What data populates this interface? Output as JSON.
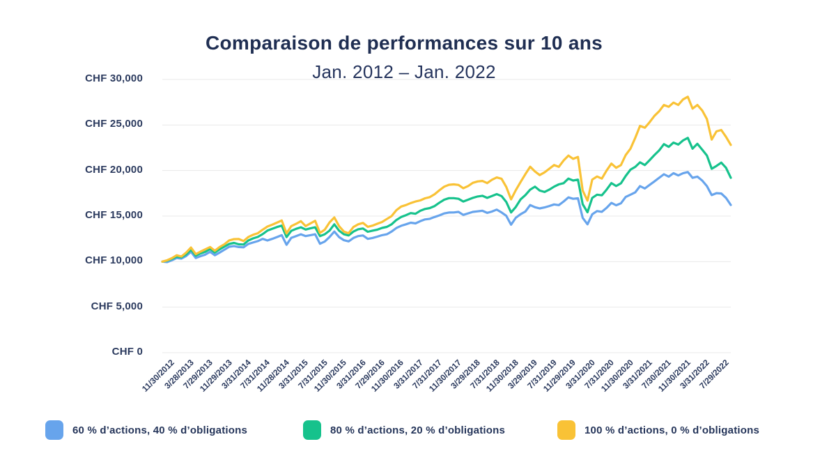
{
  "header": {
    "title": "Comparaison de performances sur 10 ans",
    "subtitle": "Jan. 2012 – Jan. 2022"
  },
  "colors": {
    "blue": "#67a4ec",
    "green": "#16c28c",
    "yellow": "#f9c236",
    "gridline": "#e8e8e8",
    "text_navy": "#2b3a5e",
    "title_navy": "#1f2e52"
  },
  "legend": {
    "items": [
      {
        "label": "60 % d’actions, 40 % d’obligations",
        "color": "#67a4ec"
      },
      {
        "label": "80 % d’actions, 20 % d’obligations",
        "color": "#16c28c"
      },
      {
        "label": "100 % d’actions, 0 % d’obligations",
        "color": "#f9c236"
      }
    ]
  },
  "chart_data": {
    "type": "line",
    "title": "Comparaison de performances sur 10 ans",
    "subtitle": "Jan. 2012 – Jan. 2022",
    "currency": "CHF",
    "grid": true,
    "legend_position": "bottom",
    "y_axis": {
      "min": 0,
      "max": 30000,
      "step": 5000,
      "tick_labels": [
        "CHF 30,000",
        "CHF 25,000",
        "CHF 20,000",
        "CHF 15,000",
        "CHF 10,000",
        "CHF 5,000",
        "CHF 0"
      ]
    },
    "x_axis": {
      "tick_labels": [
        "11/30/2012",
        "3/28/2013",
        "7/29/2013",
        "11/29/2013",
        "3/31/2014",
        "7/31/2014",
        "11/28/2014",
        "3/31/2015",
        "7/31/2015",
        "11/30/2015",
        "3/31/2016",
        "7/29/2016",
        "11/30/2016",
        "3/31/2017",
        "7/31/2017",
        "11/30/2017",
        "3/29/2018",
        "7/31/2018",
        "11/30/2018",
        "3/29/2019",
        "7/31/2019",
        "11/29/2019",
        "3/31/2020",
        "7/31/2020",
        "11/30/2020",
        "3/31/2021",
        "7/30/2021",
        "11/30/2021",
        "3/31/2022",
        "7/29/2022"
      ],
      "points_per_tick": 4,
      "first_tick_point_index": 1.5
    },
    "series": [
      {
        "name": "60 % d’actions, 40 % d’obligations",
        "color": "#67a4ec",
        "values": [
          10000,
          9950,
          10150,
          10390,
          10330,
          10620,
          11080,
          10400,
          10600,
          10770,
          11080,
          10700,
          11000,
          11300,
          11630,
          11700,
          11600,
          11570,
          11940,
          12100,
          12250,
          12500,
          12320,
          12500,
          12700,
          12900,
          11850,
          12610,
          12800,
          13000,
          12800,
          12900,
          13000,
          11960,
          12200,
          12700,
          13300,
          12700,
          12350,
          12220,
          12600,
          12800,
          12870,
          12500,
          12600,
          12740,
          12900,
          13000,
          13300,
          13690,
          13940,
          14100,
          14270,
          14200,
          14440,
          14630,
          14700,
          14900,
          15080,
          15290,
          15390,
          15400,
          15460,
          15130,
          15300,
          15460,
          15520,
          15580,
          15350,
          15500,
          15710,
          15400,
          15030,
          14050,
          14820,
          15210,
          15500,
          16210,
          15970,
          15840,
          15950,
          16100,
          16280,
          16200,
          16600,
          17050,
          16900,
          16950,
          14800,
          14100,
          15200,
          15550,
          15470,
          15900,
          16450,
          16190,
          16400,
          17100,
          17350,
          17610,
          18290,
          18030,
          18420,
          18800,
          19200,
          19590,
          19330,
          19710,
          19460,
          19700,
          19840,
          19200,
          19330,
          18900,
          18290,
          17300,
          17520,
          17480,
          17000,
          16220
        ]
      },
      {
        "name": "80 % d’actions, 20 % d’obligations",
        "color": "#16c28c",
        "values": [
          10000,
          10100,
          10300,
          10540,
          10480,
          10800,
          11320,
          10650,
          10900,
          11080,
          11390,
          11000,
          11350,
          11650,
          11940,
          12050,
          11900,
          11880,
          12320,
          12550,
          12710,
          13020,
          13410,
          13600,
          13800,
          13950,
          12700,
          13380,
          13600,
          13770,
          13520,
          13650,
          13770,
          12800,
          13000,
          13400,
          14100,
          13400,
          13000,
          12870,
          13300,
          13550,
          13640,
          13280,
          13400,
          13510,
          13700,
          13810,
          14100,
          14570,
          14900,
          15100,
          15330,
          15250,
          15580,
          15780,
          15880,
          16100,
          16470,
          16800,
          16970,
          16970,
          16900,
          16600,
          16800,
          17000,
          17150,
          17230,
          17000,
          17200,
          17410,
          17200,
          16550,
          15400,
          16000,
          16840,
          17300,
          17900,
          18230,
          17800,
          17650,
          17900,
          18230,
          18480,
          18610,
          19120,
          18900,
          19000,
          16300,
          15420,
          17000,
          17350,
          17280,
          17900,
          18620,
          18300,
          18600,
          19400,
          20100,
          20400,
          20900,
          20600,
          21130,
          21700,
          22200,
          22900,
          22600,
          23070,
          22850,
          23300,
          23590,
          22400,
          22940,
          22300,
          21650,
          20200,
          20500,
          20870,
          20300,
          19200
        ]
      },
      {
        "name": "100 % d’actions, 0 % d’obligations",
        "color": "#f9c236",
        "values": [
          10000,
          10150,
          10380,
          10700,
          10560,
          11000,
          11550,
          10820,
          11100,
          11350,
          11600,
          11200,
          11600,
          11900,
          12330,
          12470,
          12480,
          12260,
          12700,
          12950,
          13120,
          13500,
          13850,
          14050,
          14280,
          14520,
          13100,
          13900,
          14150,
          14440,
          13900,
          14200,
          14480,
          13150,
          13500,
          14300,
          14850,
          13900,
          13300,
          13120,
          13800,
          14100,
          14250,
          13820,
          13950,
          14160,
          14350,
          14680,
          15000,
          15650,
          16050,
          16210,
          16430,
          16600,
          16720,
          16950,
          17080,
          17400,
          17830,
          18230,
          18440,
          18480,
          18420,
          18050,
          18300,
          18650,
          18800,
          18860,
          18620,
          18990,
          19240,
          19100,
          18200,
          16840,
          17850,
          18740,
          19600,
          20420,
          19900,
          19500,
          19800,
          20200,
          20600,
          20400,
          21100,
          21640,
          21280,
          21500,
          17800,
          16700,
          19000,
          19350,
          19120,
          20000,
          20760,
          20300,
          20600,
          21700,
          22400,
          23600,
          24900,
          24700,
          25300,
          26000,
          26500,
          27200,
          27000,
          27460,
          27200,
          27800,
          28100,
          26800,
          27200,
          26600,
          25650,
          23400,
          24300,
          24450,
          23700,
          22810
        ]
      }
    ]
  }
}
